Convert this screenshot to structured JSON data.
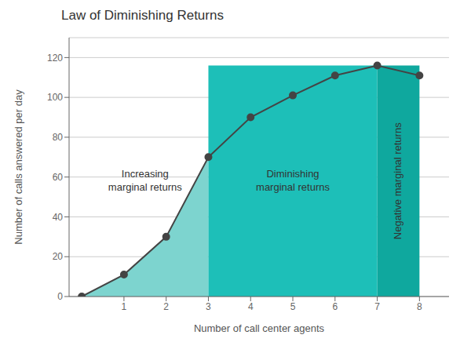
{
  "chart_data": {
    "type": "line",
    "title": "Law of Diminishing Returns",
    "xlabel": "Number of call center agents",
    "ylabel": "Number of calls answered per day",
    "x": [
      0,
      1,
      2,
      3,
      4,
      5,
      6,
      7,
      8
    ],
    "values": [
      0,
      11,
      30,
      70,
      90,
      101,
      111,
      116,
      111
    ],
    "color": "#444444",
    "marker": "circle",
    "xlim": [
      -0.3,
      8.7
    ],
    "xticks": [
      1,
      2,
      3,
      4,
      5,
      6,
      7,
      8
    ],
    "ylim": [
      0,
      130
    ],
    "yticks": [
      0,
      20,
      40,
      60,
      80,
      100,
      120
    ],
    "grid": true,
    "regions": [
      {
        "x": [
          0,
          3
        ],
        "color": "#7dd4cf",
        "label": "Increasing\nmarginal returns"
      },
      {
        "x": [
          3,
          7
        ],
        "top": 116,
        "color": "#1dbfb8",
        "label": "Diminishing\nmarginal returns"
      },
      {
        "x": [
          7,
          8
        ],
        "top": 116,
        "color": "#0fa89e",
        "label": "Negative marginal returns"
      }
    ]
  }
}
